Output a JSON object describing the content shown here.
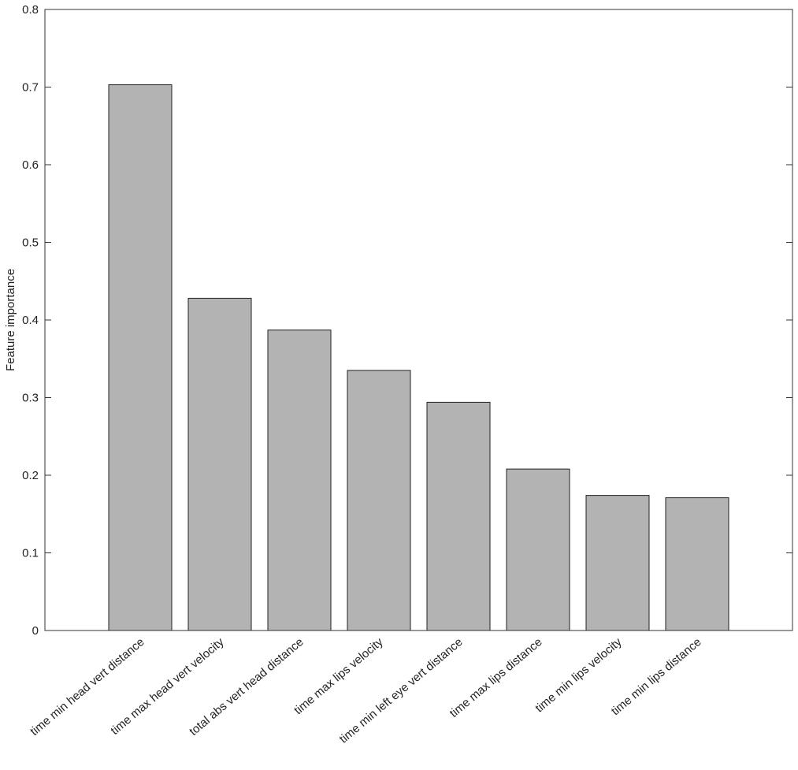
{
  "chart_data": {
    "type": "bar",
    "y_label": "Feature importance",
    "categories": [
      "time min head vert distance",
      "time max head vert velocity",
      "total abs vert head distance",
      "time max lips velocity",
      "time min left eye vert distance",
      "time max lips distance",
      "time min lips velocity",
      "time min lips distance"
    ],
    "values": [
      0.703,
      0.428,
      0.387,
      0.335,
      0.294,
      0.208,
      0.174,
      0.171
    ],
    "color": "#b3b3b3",
    "ylim": [
      0,
      0.8
    ],
    "yticks": [
      0,
      0.1,
      0.2,
      0.3,
      0.4,
      0.5,
      0.6,
      0.7,
      0.8
    ],
    "grid": false
  }
}
